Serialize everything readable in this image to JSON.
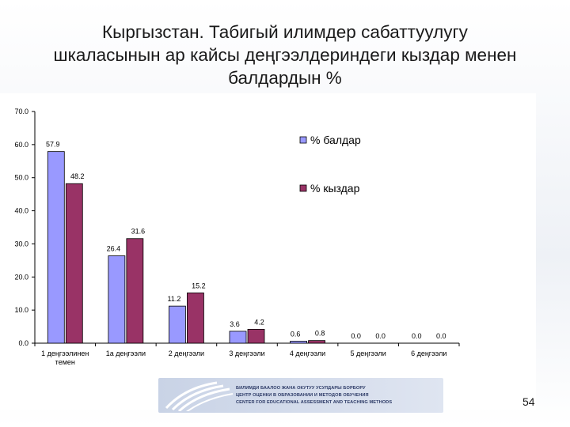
{
  "slide": {
    "title_lines": [
      "Кыргызстан. Табигый илимдер сабаттуулугу",
      "шкаласынын ар кайсы деңгээлдериндеги кыздар менен",
      "балдардын %"
    ],
    "page_number": "54",
    "logo_lines": [
      "БИЛИМДИ БААЛОО ЖАНА ОКУТУУ УСУЛДАРЫ БОРБОРУ",
      "ЦЕНТР ОЦЕНКИ В ОБРАЗОВАНИИ И МЕТОДОВ ОБУЧЕНИЯ",
      "CENTER FOR EDUCATIONAL ASSESSMENT AND TEACHING METHODS"
    ]
  },
  "chart_data": {
    "type": "bar",
    "title": "",
    "categories": [
      [
        "1 деңгээлинен",
        "темен"
      ],
      [
        "1а деңгээли"
      ],
      [
        "2 деңгээли"
      ],
      [
        "3 деңгээли"
      ],
      [
        "4 деңгээли"
      ],
      [
        "5 деңгээли"
      ],
      [
        "6 деңгээли"
      ]
    ],
    "series": [
      {
        "name": "% балдар",
        "color": "#9999ff",
        "values": [
          57.9,
          26.4,
          11.2,
          3.6,
          0.6,
          0.0,
          0.0
        ]
      },
      {
        "name": "% кыздар",
        "color": "#993366",
        "values": [
          48.2,
          31.6,
          15.2,
          4.2,
          0.8,
          0.0,
          0.0
        ]
      }
    ],
    "data_labels": [
      [
        "57.9",
        "26.4",
        "11.2",
        "3.6",
        "0.6",
        "0.0",
        "0.0"
      ],
      [
        "48.2",
        "31.6",
        "15.2",
        "4.2",
        "0.8",
        "0.0",
        "0.0"
      ]
    ],
    "ylim": [
      0,
      70
    ],
    "yticks": [
      "0.0",
      "10.0",
      "20.0",
      "30.0",
      "40.0",
      "50.0",
      "60.0",
      "70.0"
    ],
    "xlabel": "",
    "ylabel": "",
    "grid": false,
    "legend": "top-right"
  }
}
